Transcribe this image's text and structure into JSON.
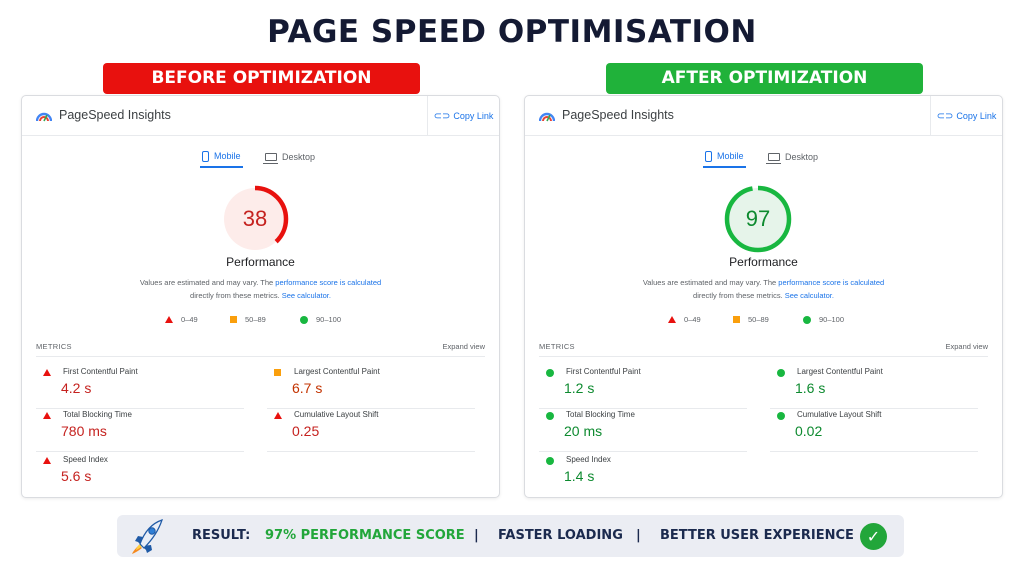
{
  "title": "PAGE SPEED OPTIMISATION",
  "before": {
    "banner": "BEFORE OPTIMIZATION",
    "banner_color": "#e8110e",
    "app_name": "PageSpeed Insights",
    "copy_link": "Copy Link",
    "tab_mobile": "Mobile",
    "tab_desktop": "Desktop",
    "score": "38",
    "score_fraction": 0.38,
    "score_color": "#e8110e",
    "perf_label": "Performance",
    "disclaimer_1": "Values are estimated and may vary. The ",
    "disclaimer_link1": "performance score is calculated",
    "disclaimer_2": "directly from these metrics. ",
    "disclaimer_link2": "See calculator.",
    "legend_fail": "0–49",
    "legend_avg": "50–89",
    "legend_pass": "90–100",
    "metrics_header": "METRICS",
    "expand_view": "Expand view",
    "metrics": [
      {
        "name": "First Contentful Paint",
        "value": "4.2 s",
        "status": "fail"
      },
      {
        "name": "Largest Contentful Paint",
        "value": "6.7 s",
        "status": "average"
      },
      {
        "name": "Total Blocking Time",
        "value": "780 ms",
        "status": "fail"
      },
      {
        "name": "Cumulative Layout Shift",
        "value": "0.25",
        "status": "fail"
      },
      {
        "name": "Speed Index",
        "value": "5.6 s",
        "status": "fail"
      }
    ]
  },
  "after": {
    "banner": "AFTER OPTIMIZATION",
    "banner_color": "#20b23a",
    "app_name": "PageSpeed Insights",
    "copy_link": "Copy Link",
    "tab_mobile": "Mobile",
    "tab_desktop": "Desktop",
    "score": "97",
    "score_fraction": 0.97,
    "score_color": "#18b740",
    "perf_label": "Performance",
    "disclaimer_1": "Values are estimated and may vary. The ",
    "disclaimer_link1": "performance score is calculated",
    "disclaimer_2": "directly from these metrics. ",
    "disclaimer_link2": "See calculator.",
    "legend_fail": "0–49",
    "legend_avg": "50–89",
    "legend_pass": "90–100",
    "metrics_header": "METRICS",
    "expand_view": "Expand view",
    "metrics": [
      {
        "name": "First Contentful Paint",
        "value": "1.2 s",
        "status": "pass"
      },
      {
        "name": "Largest Contentful Paint",
        "value": "1.6 s",
        "status": "pass"
      },
      {
        "name": "Total Blocking Time",
        "value": "20 ms",
        "status": "pass"
      },
      {
        "name": "Cumulative Layout Shift",
        "value": "0.02",
        "status": "pass"
      },
      {
        "name": "Speed Index",
        "value": "1.4 s",
        "status": "pass"
      }
    ]
  },
  "result": {
    "label": "RESULT:",
    "score_text": "97% PERFORMANCE SCORE",
    "sep1": "|",
    "faster": "FASTER LOADING",
    "sep2": "|",
    "ux": "BETTER USER EXPERIENCE",
    "check_glyph": "✓"
  },
  "icons": {
    "rocket": "rocket-icon",
    "check": "check-circle-icon",
    "logo": "pagespeed-logo-icon",
    "link": "link-icon"
  },
  "colors": {
    "fail": "#e8110e",
    "average": "#fa9f0c",
    "pass": "#18b740",
    "fail_value": "#c5221f",
    "average_value": "#c33300",
    "pass_value": "#0d8a2f",
    "link": "#1a73e8",
    "title": "#141a33"
  }
}
